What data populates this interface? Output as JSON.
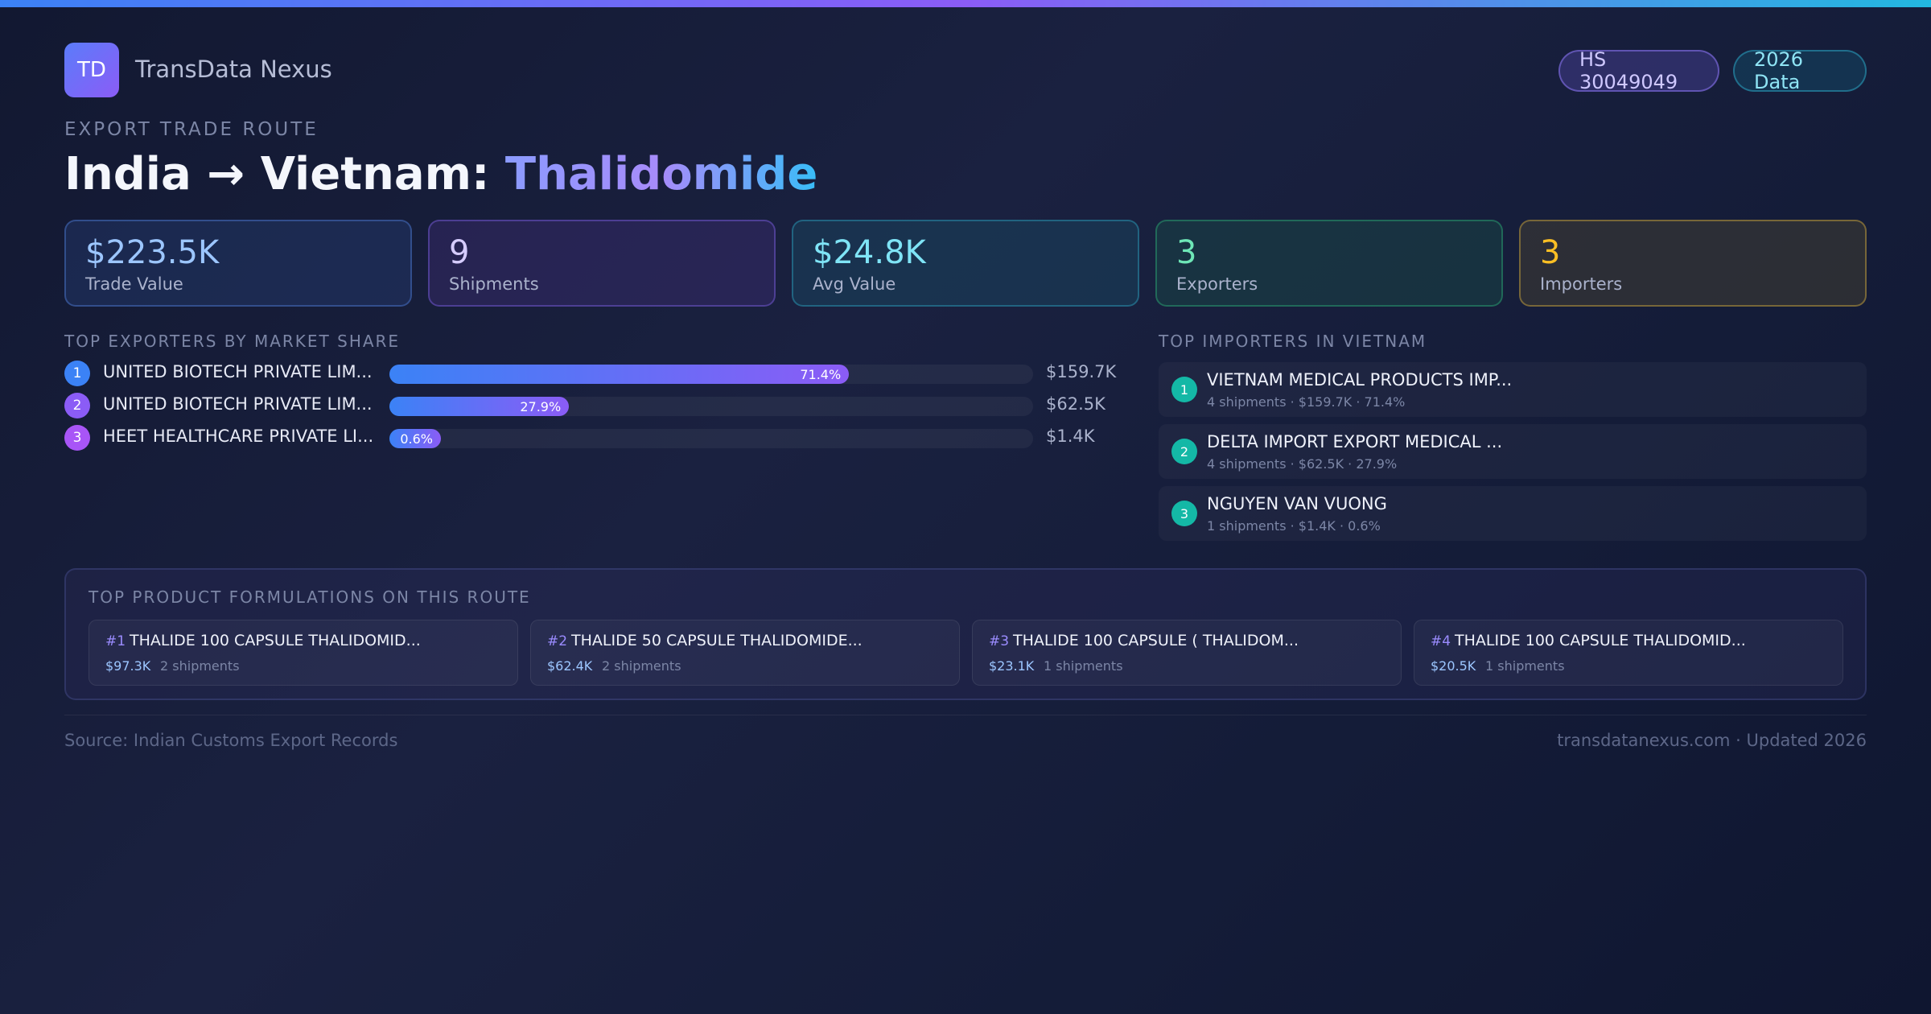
{
  "brand": {
    "logo_text": "TD",
    "name": "TransData Nexus"
  },
  "badges": {
    "hs_code": "HS 30049049",
    "year": "2026 Data"
  },
  "route": {
    "eyebrow": "EXPORT TRADE ROUTE",
    "title_prefix": "India → Vietnam: ",
    "title_product": "Thalidomide"
  },
  "stats": [
    {
      "value": "$223.5K",
      "label": "Trade Value"
    },
    {
      "value": "9",
      "label": "Shipments"
    },
    {
      "value": "$24.8K",
      "label": "Avg Value"
    },
    {
      "value": "3",
      "label": "Exporters"
    },
    {
      "value": "3",
      "label": "Importers"
    }
  ],
  "exporters": {
    "heading": "TOP EXPORTERS BY MARKET SHARE",
    "items": [
      {
        "rank": "1",
        "name": "UNITED BIOTECH PRIVATE LIM...",
        "share": 71.4,
        "share_label": "71.4%",
        "value": "$159.7K",
        "color": "#3b82f6"
      },
      {
        "rank": "2",
        "name": "UNITED BIOTECH PRIVATE LIM...",
        "share": 27.9,
        "share_label": "27.9%",
        "value": "$62.5K",
        "color": "#8b5cf6"
      },
      {
        "rank": "3",
        "name": "HEET HEALTHCARE PRIVATE LI...",
        "share": 0.6,
        "share_label": "0.6%",
        "value": "$1.4K",
        "color": "#a855f7"
      }
    ]
  },
  "importers": {
    "heading": "TOP IMPORTERS IN VIETNAM",
    "items": [
      {
        "rank": "1",
        "name": "VIETNAM MEDICAL PRODUCTS IMP...",
        "detail": "4 shipments · $159.7K · 71.4%"
      },
      {
        "rank": "2",
        "name": "DELTA IMPORT EXPORT MEDICAL ...",
        "detail": "4 shipments · $62.5K · 27.9%"
      },
      {
        "rank": "3",
        "name": "NGUYEN VAN VUONG",
        "detail": "1 shipments · $1.4K · 0.6%"
      }
    ]
  },
  "formulations": {
    "heading": "TOP PRODUCT FORMULATIONS ON THIS ROUTE",
    "items": [
      {
        "num": "#1",
        "name": "THALIDE 100 CAPSULE THALIDOMID...",
        "value": "$97.3K",
        "shipments": "2 shipments"
      },
      {
        "num": "#2",
        "name": "THALIDE 50 CAPSULE THALIDOMIDE...",
        "value": "$62.4K",
        "shipments": "2 shipments"
      },
      {
        "num": "#3",
        "name": "THALIDE 100 CAPSULE ( THALIDOM...",
        "value": "$23.1K",
        "shipments": "1 shipments"
      },
      {
        "num": "#4",
        "name": "THALIDE 100 CAPSULE THALIDOMID...",
        "value": "$20.5K",
        "shipments": "1 shipments"
      }
    ]
  },
  "footer": {
    "source": "Source: Indian Customs Export Records",
    "site": "transdatanexus.com · Updated 2026"
  }
}
